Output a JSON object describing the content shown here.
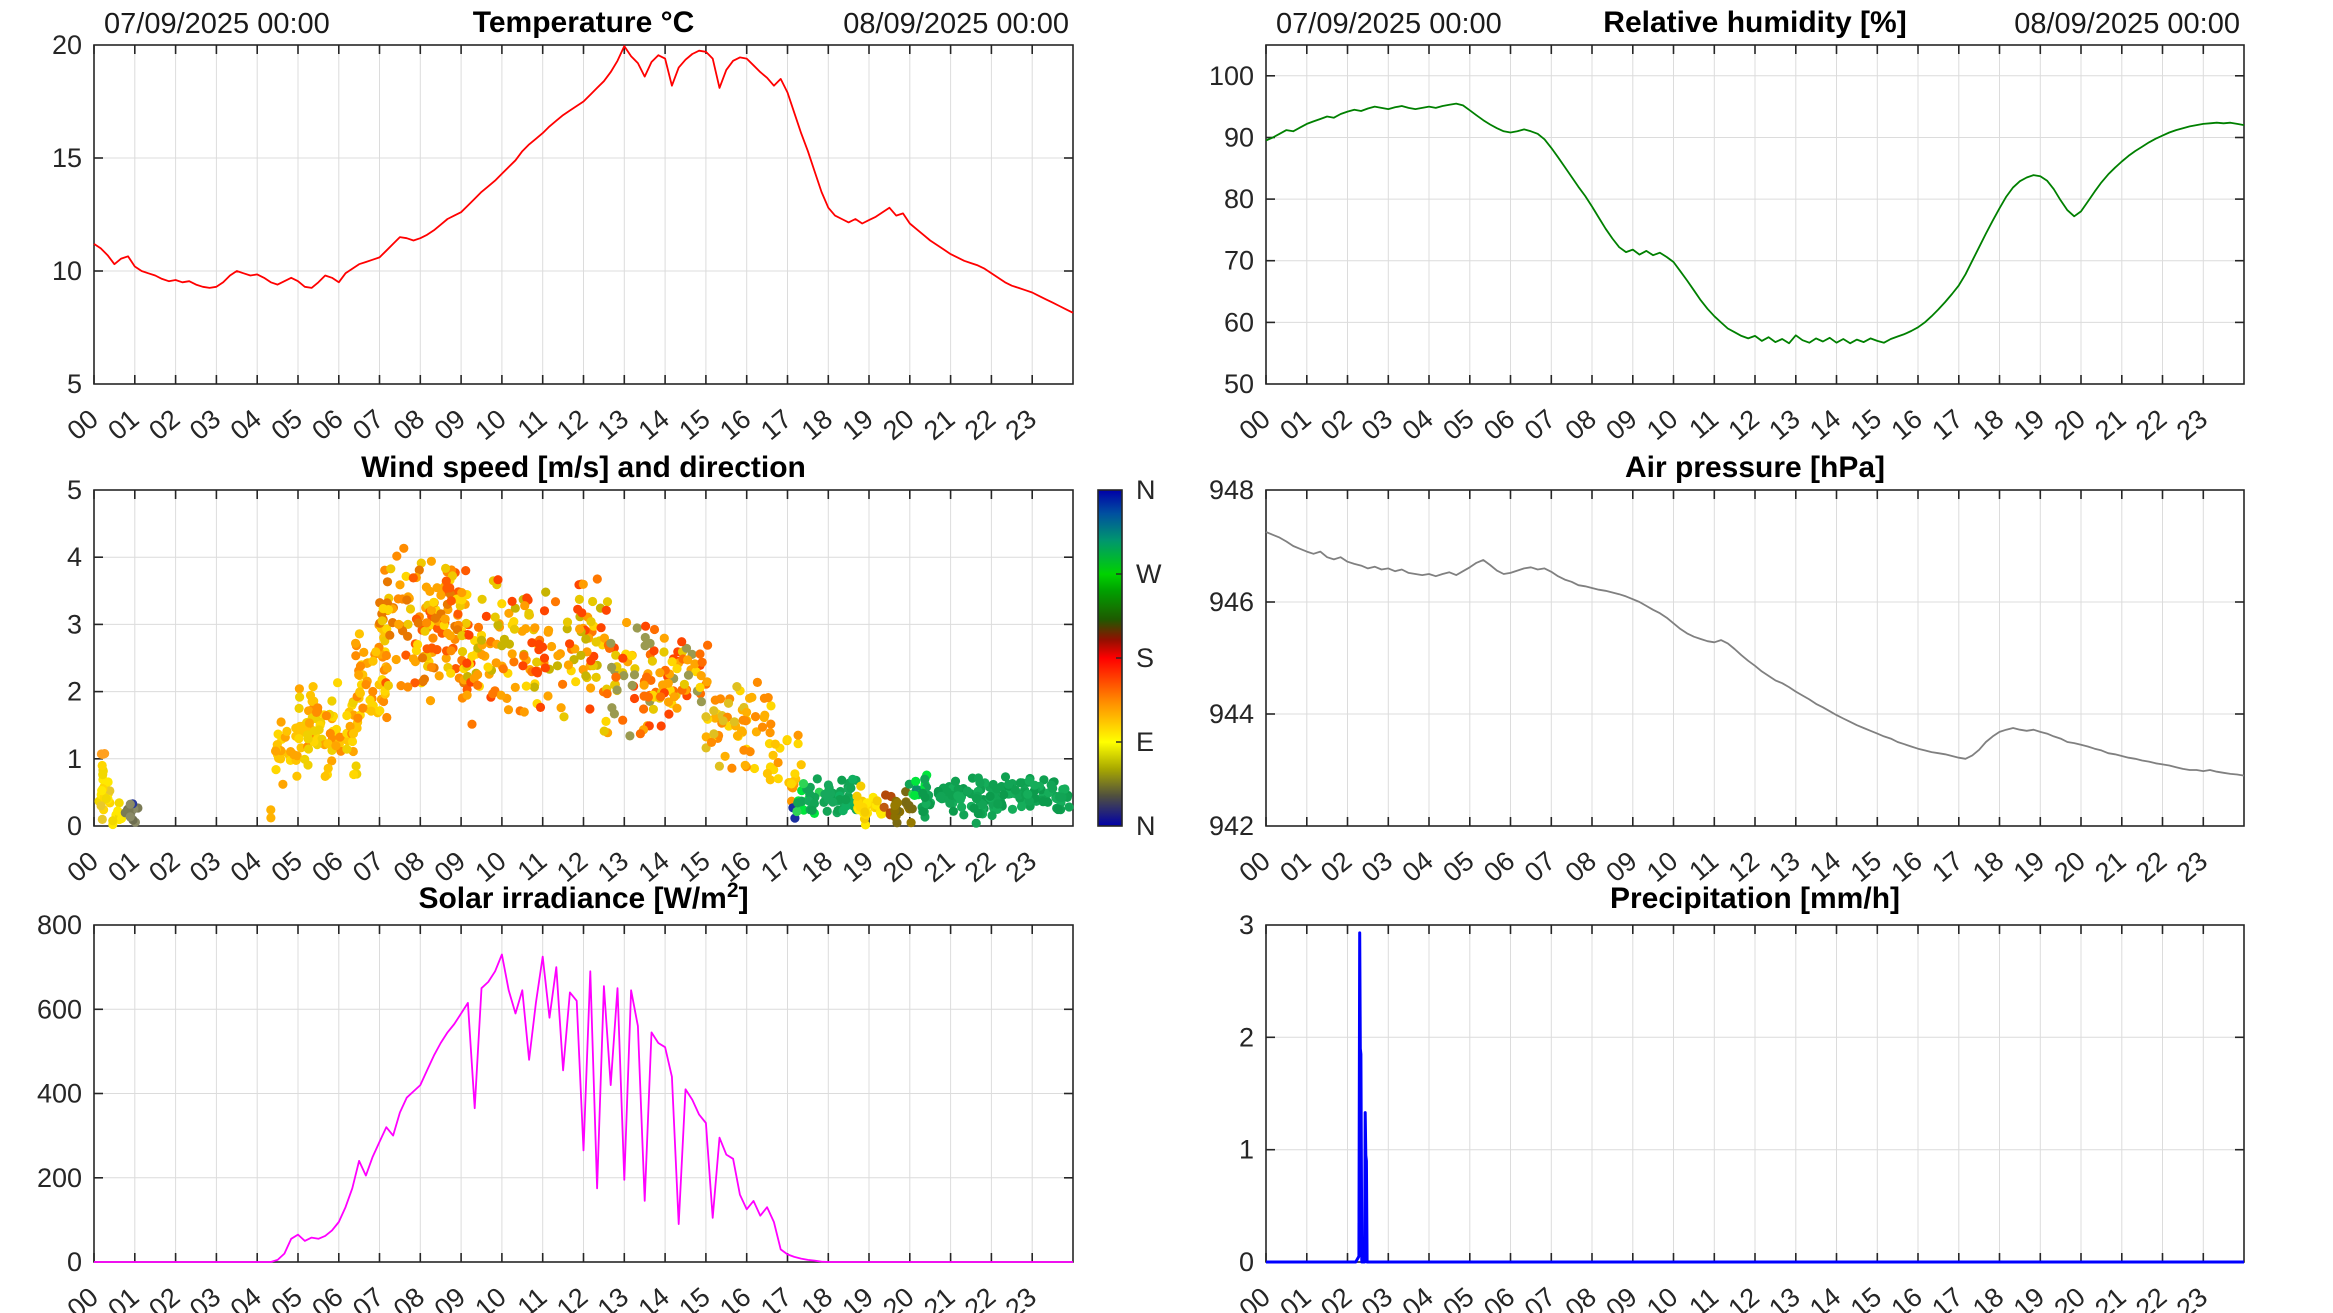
{
  "figure_bg": "#FFFFFF",
  "axis_color": "#262626",
  "grid_color": "#DCDCDC",
  "x_axis": {
    "tick_labels": [
      "00",
      "01",
      "02",
      "03",
      "04",
      "05",
      "06",
      "07",
      "08",
      "09",
      "10",
      "11",
      "12",
      "13",
      "14",
      "15",
      "16",
      "17",
      "18",
      "19",
      "20",
      "21",
      "22",
      "23"
    ],
    "xlim": [
      0,
      24
    ]
  },
  "chart_data": [
    {
      "name": "temperature",
      "type": "line",
      "title_pre": "Temperature °C",
      "title_sup": "",
      "title_post": "",
      "date_left": "07/09/2025 00:00",
      "date_right": "08/09/2025 00:00",
      "color": "#FF0000",
      "line_width": 1.8,
      "ylim": [
        5,
        20
      ],
      "yticks": [
        5,
        10,
        15,
        20
      ],
      "values": [
        11.2,
        11.0,
        10.7,
        10.3,
        10.55,
        10.65,
        10.2,
        10.0,
        9.9,
        9.8,
        9.65,
        9.55,
        9.6,
        9.5,
        9.55,
        9.4,
        9.3,
        9.25,
        9.3,
        9.5,
        9.8,
        10.0,
        9.9,
        9.8,
        9.85,
        9.7,
        9.5,
        9.4,
        9.55,
        9.7,
        9.55,
        9.3,
        9.25,
        9.5,
        9.8,
        9.7,
        9.5,
        9.9,
        10.1,
        10.3,
        10.4,
        10.5,
        10.6,
        10.9,
        11.2,
        11.5,
        11.45,
        11.35,
        11.45,
        11.6,
        11.8,
        12.05,
        12.3,
        12.45,
        12.6,
        12.9,
        13.2,
        13.5,
        13.75,
        14.0,
        14.3,
        14.6,
        14.9,
        15.3,
        15.6,
        15.85,
        16.1,
        16.4,
        16.65,
        16.9,
        17.1,
        17.3,
        17.5,
        17.8,
        18.1,
        18.4,
        18.8,
        19.3,
        19.95,
        19.5,
        19.2,
        18.6,
        19.25,
        19.55,
        19.4,
        18.2,
        19.0,
        19.35,
        19.6,
        19.75,
        19.7,
        19.4,
        18.1,
        18.9,
        19.3,
        19.45,
        19.4,
        19.1,
        18.8,
        18.55,
        18.2,
        18.5,
        17.9,
        17.0,
        16.1,
        15.3,
        14.4,
        13.5,
        12.8,
        12.45,
        12.3,
        12.15,
        12.3,
        12.1,
        12.25,
        12.4,
        12.6,
        12.8,
        12.45,
        12.55,
        12.1,
        11.85,
        11.6,
        11.35,
        11.15,
        10.95,
        10.75,
        10.6,
        10.45,
        10.35,
        10.25,
        10.1,
        9.9,
        9.7,
        9.5,
        9.35,
        9.25,
        9.15,
        9.05,
        8.9,
        8.75,
        8.6,
        8.45,
        8.3,
        8.15
      ]
    },
    {
      "name": "relative-humidity",
      "type": "line",
      "title_pre": "Relative humidity [%]",
      "title_sup": "",
      "title_post": "",
      "date_left": "07/09/2025 00:00",
      "date_right": "08/09/2025 00:00",
      "color": "#008000",
      "line_width": 1.8,
      "ylim": [
        50,
        105
      ],
      "yticks": [
        50,
        60,
        70,
        80,
        90,
        100
      ],
      "values": [
        89.5,
        90.0,
        90.6,
        91.2,
        91.0,
        91.6,
        92.2,
        92.6,
        93.0,
        93.4,
        93.2,
        93.8,
        94.2,
        94.5,
        94.3,
        94.7,
        95.0,
        94.8,
        94.6,
        94.9,
        95.1,
        94.8,
        94.6,
        94.8,
        95.0,
        94.8,
        95.1,
        95.3,
        95.5,
        95.2,
        94.4,
        93.6,
        92.8,
        92.1,
        91.5,
        91.0,
        90.8,
        91.0,
        91.3,
        91.0,
        90.6,
        89.7,
        88.3,
        86.8,
        85.2,
        83.6,
        82.0,
        80.5,
        78.8,
        77.0,
        75.2,
        73.6,
        72.2,
        71.4,
        71.8,
        71.0,
        71.6,
        70.9,
        71.3,
        70.6,
        69.8,
        68.3,
        66.8,
        65.2,
        63.6,
        62.2,
        61.0,
        60.0,
        59.0,
        58.4,
        57.8,
        57.4,
        57.8,
        57.0,
        57.6,
        56.8,
        57.3,
        56.6,
        57.9,
        57.1,
        56.7,
        57.4,
        56.9,
        57.5,
        56.7,
        57.3,
        56.6,
        57.2,
        56.8,
        57.4,
        57.0,
        56.7,
        57.3,
        57.7,
        58.1,
        58.6,
        59.2,
        60.0,
        61.0,
        62.1,
        63.3,
        64.6,
        66.0,
        67.8,
        70.0,
        72.2,
        74.4,
        76.5,
        78.5,
        80.4,
        81.9,
        82.9,
        83.5,
        83.9,
        83.7,
        83.0,
        81.6,
        79.8,
        78.2,
        77.2,
        78.0,
        79.6,
        81.2,
        82.7,
        84.0,
        85.1,
        86.1,
        87.0,
        87.8,
        88.5,
        89.2,
        89.8,
        90.3,
        90.8,
        91.2,
        91.5,
        91.8,
        92.0,
        92.2,
        92.3,
        92.4,
        92.3,
        92.4,
        92.2,
        92.0
      ]
    },
    {
      "name": "wind",
      "type": "scatter",
      "title_pre": "Wind speed [m/s] and direction",
      "title_sup": "",
      "title_post": "",
      "ylim": [
        0,
        5
      ],
      "yticks": [
        0,
        1,
        2,
        3,
        4,
        5
      ],
      "point_radius": 4.6,
      "clusters": [
        {
          "t0": 0.05,
          "t1": 0.45,
          "n": 22,
          "vmin": 0.05,
          "vmax": 1.0,
          "colors": [
            "#FFE800",
            "#F2D800",
            "#FFD700",
            "#E8C82A"
          ],
          "seed": 11
        },
        {
          "t0": 0.15,
          "t1": 0.35,
          "n": 3,
          "vmin": 1.0,
          "vmax": 1.2,
          "colors": [
            "#FFA020"
          ],
          "seed": 12
        },
        {
          "t0": 0.45,
          "t1": 0.75,
          "n": 8,
          "vmin": 0.0,
          "vmax": 0.45,
          "colors": [
            "#FFE800",
            "#F2D800"
          ],
          "seed": 13
        },
        {
          "t0": 0.75,
          "t1": 1.1,
          "n": 14,
          "vmin": 0.02,
          "vmax": 0.42,
          "colors": [
            "#7A7A55",
            "#8A8A66",
            "#1E2FA8",
            "#2A3A9A",
            "#6E6E50"
          ],
          "seed": 14
        },
        {
          "t0": 4.3,
          "t1": 4.45,
          "n": 2,
          "vmin": 0.0,
          "vmax": 0.3,
          "colors": [
            "#FFB300"
          ],
          "seed": 15
        },
        {
          "t0": 4.4,
          "t1": 5.0,
          "n": 26,
          "vmin": 0.5,
          "vmax": 1.75,
          "colors": [
            "#FFD700",
            "#FFC400",
            "#FFA500"
          ],
          "seed": 16
        },
        {
          "t0": 5.0,
          "t1": 6.5,
          "n": 85,
          "vmin": 0.6,
          "vmax": 2.3,
          "colors": [
            "#FFD700",
            "#FFC400",
            "#FFA500",
            "#F0D000",
            "#FF8C00"
          ],
          "seed": 17
        },
        {
          "t0": 6.4,
          "t1": 7.2,
          "n": 55,
          "vmin": 1.3,
          "vmax": 3.3,
          "colors": [
            "#FFD700",
            "#FFA500",
            "#FFC400",
            "#FF8C00"
          ],
          "seed": 18
        },
        {
          "t0": 7.0,
          "t1": 9.2,
          "n": 150,
          "vmin": 1.8,
          "vmax": 4.25,
          "colors": [
            "#FFD700",
            "#FFA500",
            "#FF8C00",
            "#FF5A00",
            "#F0C800",
            "#E87800"
          ],
          "seed": 19
        },
        {
          "t0": 9.0,
          "t1": 12.6,
          "n": 175,
          "vmin": 1.45,
          "vmax": 3.85,
          "colors": [
            "#FFD700",
            "#FFA500",
            "#FF7800",
            "#FF4500",
            "#E8C800",
            "#FF9E00",
            "#C8B400"
          ],
          "seed": 20
        },
        {
          "t0": 12.5,
          "t1": 15.1,
          "n": 120,
          "vmin": 1.25,
          "vmax": 3.15,
          "colors": [
            "#FFD700",
            "#FFA500",
            "#FF6E00",
            "#E8C800",
            "#9A9A50",
            "#FF4500"
          ],
          "seed": 21
        },
        {
          "t0": 15.0,
          "t1": 16.6,
          "n": 58,
          "vmin": 0.75,
          "vmax": 2.45,
          "colors": [
            "#FFD700",
            "#FFB000",
            "#FF8C00",
            "#E0C020"
          ],
          "seed": 22
        },
        {
          "t0": 16.5,
          "t1": 17.35,
          "n": 24,
          "vmin": 0.25,
          "vmax": 1.5,
          "colors": [
            "#FFC400",
            "#FF9800",
            "#FFD700"
          ],
          "seed": 23
        },
        {
          "t0": 17.05,
          "t1": 17.3,
          "n": 2,
          "vmin": 0.05,
          "vmax": 0.4,
          "colors": [
            "#1A2FA0"
          ],
          "seed": 24
        },
        {
          "t0": 17.2,
          "t1": 17.8,
          "n": 18,
          "vmin": 0.05,
          "vmax": 0.8,
          "colors": [
            "#00E53C",
            "#2ED455",
            "#12A455"
          ],
          "seed": 25
        },
        {
          "t0": 17.5,
          "t1": 18.7,
          "n": 45,
          "vmin": 0.05,
          "vmax": 0.75,
          "colors": [
            "#12A455",
            "#10B060",
            "#0FA050",
            "#16A85C"
          ],
          "seed": 26
        },
        {
          "t0": 18.55,
          "t1": 19.45,
          "n": 28,
          "vmin": 0.0,
          "vmax": 0.7,
          "colors": [
            "#FFE800",
            "#FFD700",
            "#F5CC00"
          ],
          "seed": 27
        },
        {
          "t0": 19.3,
          "t1": 19.55,
          "n": 5,
          "vmin": 0.1,
          "vmax": 0.6,
          "colors": [
            "#C05A10",
            "#B44A0A"
          ],
          "seed": 28
        },
        {
          "t0": 19.5,
          "t1": 20.15,
          "n": 18,
          "vmin": 0.0,
          "vmax": 0.6,
          "colors": [
            "#8B7000",
            "#7A6A12",
            "#967A00"
          ],
          "seed": 29
        },
        {
          "t0": 19.9,
          "t1": 20.45,
          "n": 16,
          "vmin": 0.1,
          "vmax": 0.9,
          "colors": [
            "#00E53C",
            "#12A455",
            "#0E8D68",
            "#2ED455"
          ],
          "seed": 30
        },
        {
          "t0": 20.3,
          "t1": 23.95,
          "n": 150,
          "vmin": 0.12,
          "vmax": 0.78,
          "colors": [
            "#12A455",
            "#0FA050",
            "#15AD5A",
            "#0C9A4C"
          ],
          "seed": 31
        },
        {
          "t0": 21.55,
          "t1": 21.75,
          "n": 1,
          "vmin": 0.02,
          "vmax": 0.06,
          "colors": [
            "#12A455"
          ],
          "seed": 32
        }
      ],
      "colorbar": {
        "labels": [
          {
            "text": "N",
            "pos": 1.0
          },
          {
            "text": "W",
            "pos": 0.75
          },
          {
            "text": "S",
            "pos": 0.5
          },
          {
            "text": "E",
            "pos": 0.25
          },
          {
            "text": "N",
            "pos": 0.0
          }
        ],
        "gradient": [
          [
            "#0000A8",
            0.0
          ],
          [
            "#50503E",
            0.09
          ],
          [
            "#A8A800",
            0.17
          ],
          [
            "#FFFF00",
            0.25
          ],
          [
            "#FF8C00",
            0.37
          ],
          [
            "#FF0000",
            0.5
          ],
          [
            "#901000",
            0.555
          ],
          [
            "#1E5A00",
            0.615
          ],
          [
            "#00A000",
            0.7
          ],
          [
            "#00D200",
            0.75
          ],
          [
            "#00966E",
            0.85
          ],
          [
            "#0050A0",
            0.93
          ],
          [
            "#0000A8",
            1.0
          ]
        ]
      }
    },
    {
      "name": "air-pressure",
      "type": "line",
      "title_pre": "Air pressure [hPa]",
      "title_sup": "",
      "title_post": "",
      "color": "#808080",
      "line_width": 1.8,
      "ylim": [
        942,
        948
      ],
      "yticks": [
        942,
        944,
        946,
        948
      ],
      "values": [
        947.25,
        947.2,
        947.15,
        947.08,
        947.0,
        946.95,
        946.9,
        946.86,
        946.9,
        946.8,
        946.76,
        946.8,
        946.72,
        946.68,
        946.65,
        946.6,
        946.63,
        946.58,
        946.6,
        946.55,
        946.58,
        946.52,
        946.5,
        946.48,
        946.5,
        946.46,
        946.5,
        946.53,
        946.48,
        946.55,
        946.62,
        946.7,
        946.75,
        946.66,
        946.56,
        946.5,
        946.52,
        946.56,
        946.6,
        946.62,
        946.58,
        946.6,
        946.54,
        946.46,
        946.4,
        946.36,
        946.3,
        946.28,
        946.25,
        946.22,
        946.2,
        946.17,
        946.14,
        946.1,
        946.05,
        946.0,
        945.93,
        945.86,
        945.8,
        945.72,
        945.62,
        945.52,
        945.44,
        945.38,
        945.34,
        945.3,
        945.28,
        945.32,
        945.26,
        945.16,
        945.05,
        944.95,
        944.86,
        944.76,
        944.68,
        944.6,
        944.55,
        944.48,
        944.4,
        944.33,
        944.26,
        944.18,
        944.12,
        944.05,
        943.98,
        943.92,
        943.86,
        943.8,
        943.75,
        943.7,
        943.65,
        943.6,
        943.56,
        943.5,
        943.46,
        943.42,
        943.38,
        943.35,
        943.32,
        943.3,
        943.28,
        943.25,
        943.22,
        943.2,
        943.26,
        943.36,
        943.5,
        943.6,
        943.68,
        943.72,
        943.75,
        943.72,
        943.7,
        943.72,
        943.68,
        943.65,
        943.6,
        943.56,
        943.5,
        943.48,
        943.45,
        943.42,
        943.38,
        943.35,
        943.3,
        943.28,
        943.25,
        943.22,
        943.2,
        943.17,
        943.15,
        943.12,
        943.1,
        943.08,
        943.05,
        943.02,
        943.0,
        943.0,
        942.98,
        943.0,
        942.97,
        942.95,
        942.93,
        942.92,
        942.9
      ]
    },
    {
      "name": "solar-irradiance",
      "type": "line",
      "title_pre": "Solar irradiance [W/m",
      "title_sup": "2",
      "title_post": "]",
      "color": "#FF00FF",
      "line_width": 1.8,
      "ylim": [
        0,
        800
      ],
      "yticks": [
        0,
        200,
        400,
        600,
        800
      ],
      "values": [
        0,
        0,
        0,
        0,
        0,
        0,
        0,
        0,
        0,
        0,
        0,
        0,
        0,
        0,
        0,
        0,
        0,
        0,
        0,
        0,
        0,
        0,
        0,
        0,
        0,
        0,
        0,
        5,
        20,
        55,
        65,
        50,
        58,
        55,
        62,
        75,
        95,
        130,
        175,
        240,
        205,
        250,
        285,
        320,
        300,
        355,
        390,
        405,
        420,
        455,
        490,
        520,
        545,
        565,
        590,
        615,
        365,
        650,
        665,
        690,
        730,
        645,
        590,
        645,
        480,
        615,
        725,
        580,
        700,
        455,
        640,
        620,
        265,
        690,
        175,
        655,
        420,
        650,
        195,
        645,
        560,
        145,
        545,
        520,
        510,
        440,
        90,
        410,
        385,
        350,
        330,
        105,
        295,
        255,
        245,
        160,
        125,
        145,
        110,
        130,
        95,
        30,
        18,
        12,
        8,
        5,
        3,
        1,
        0,
        0,
        0,
        0,
        0,
        0,
        0,
        0,
        0,
        0,
        0,
        0,
        0,
        0,
        0,
        0,
        0,
        0,
        0,
        0,
        0,
        0,
        0,
        0,
        0,
        0,
        0,
        0,
        0,
        0,
        0,
        0,
        0,
        0,
        0,
        0,
        0
      ]
    },
    {
      "name": "precipitation",
      "type": "line",
      "title_pre": "Precipitation [mm/h]",
      "title_sup": "",
      "title_post": "",
      "color": "#0000FF",
      "line_width": 3,
      "ylim": [
        0,
        3
      ],
      "yticks": [
        0,
        1,
        2,
        3
      ],
      "x": [
        0,
        2.2,
        2.28,
        2.3,
        2.315,
        2.33,
        2.35,
        2.42,
        2.435,
        2.45,
        2.465,
        2.48,
        24
      ],
      "y": [
        0,
        0,
        0.05,
        2.93,
        1.9,
        1.85,
        0,
        0,
        1.33,
        0.95,
        0.9,
        0,
        0
      ]
    }
  ]
}
